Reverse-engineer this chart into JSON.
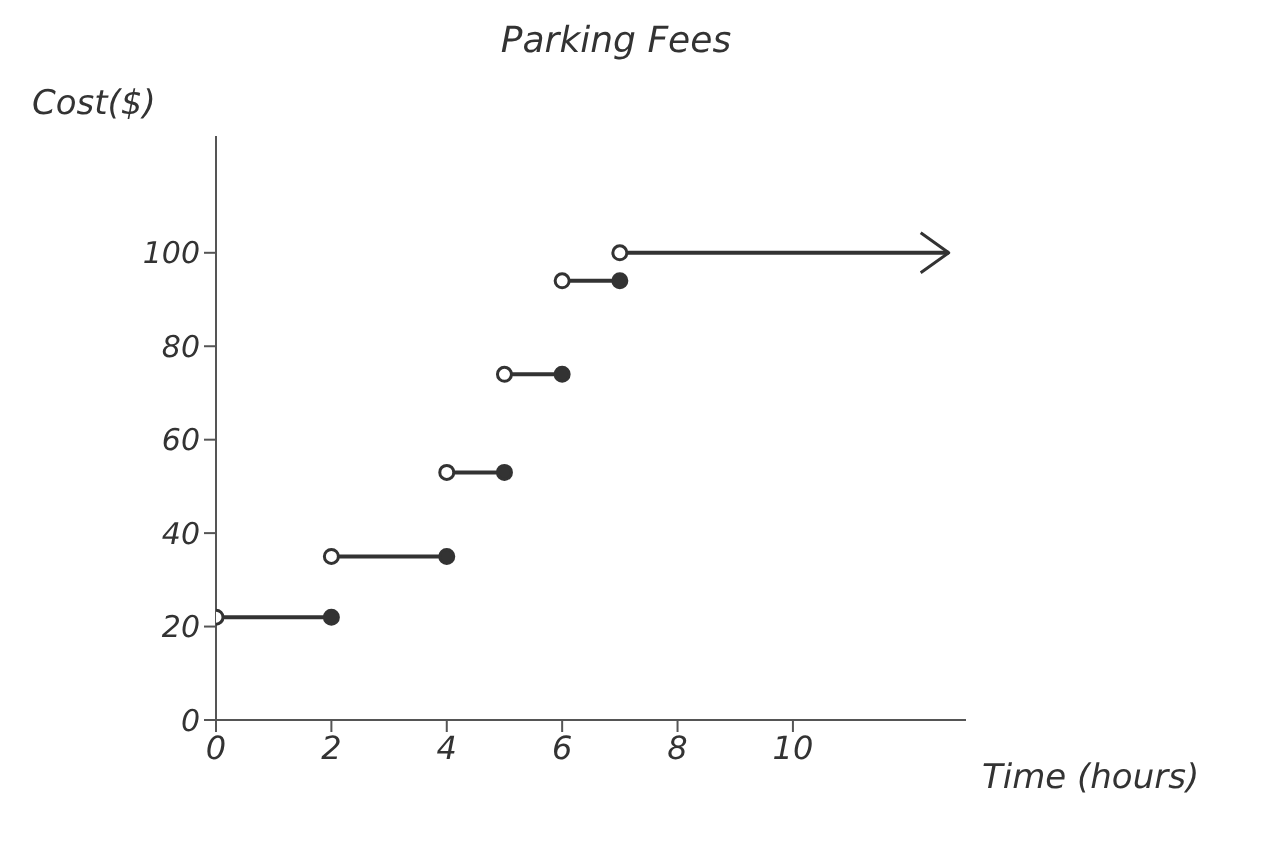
{
  "chart_data": {
    "type": "line",
    "title": "Parking Fees",
    "xlabel": "Time (hours)",
    "ylabel": "Cost($)",
    "series": [
      {
        "color": "#333333",
        "x": [
          0,
          2
        ],
        "values": [
          22,
          22
        ]
      },
      {
        "color": "#333333",
        "x": [
          2,
          4
        ],
        "values": [
          35,
          35
        ]
      },
      {
        "color": "#333333",
        "x": [
          4,
          5
        ],
        "values": [
          53,
          53
        ]
      },
      {
        "color": "#333333",
        "x": [
          5,
          6
        ],
        "values": [
          74,
          74
        ]
      },
      {
        "color": "#333333",
        "x": [
          6,
          7
        ],
        "values": [
          94,
          94
        ]
      },
      {
        "color": "#333333",
        "x": [
          7,
          12.7
        ],
        "values": [
          100,
          100
        ]
      }
    ],
    "xlim": [
      0,
      13
    ],
    "xticks": [
      0,
      2,
      4,
      6,
      8,
      10
    ],
    "ylim": [
      0,
      125
    ],
    "yticks": [
      0,
      20,
      40,
      60,
      80,
      100
    ],
    "marker": "circle",
    "grid": false,
    "legend": false
  }
}
